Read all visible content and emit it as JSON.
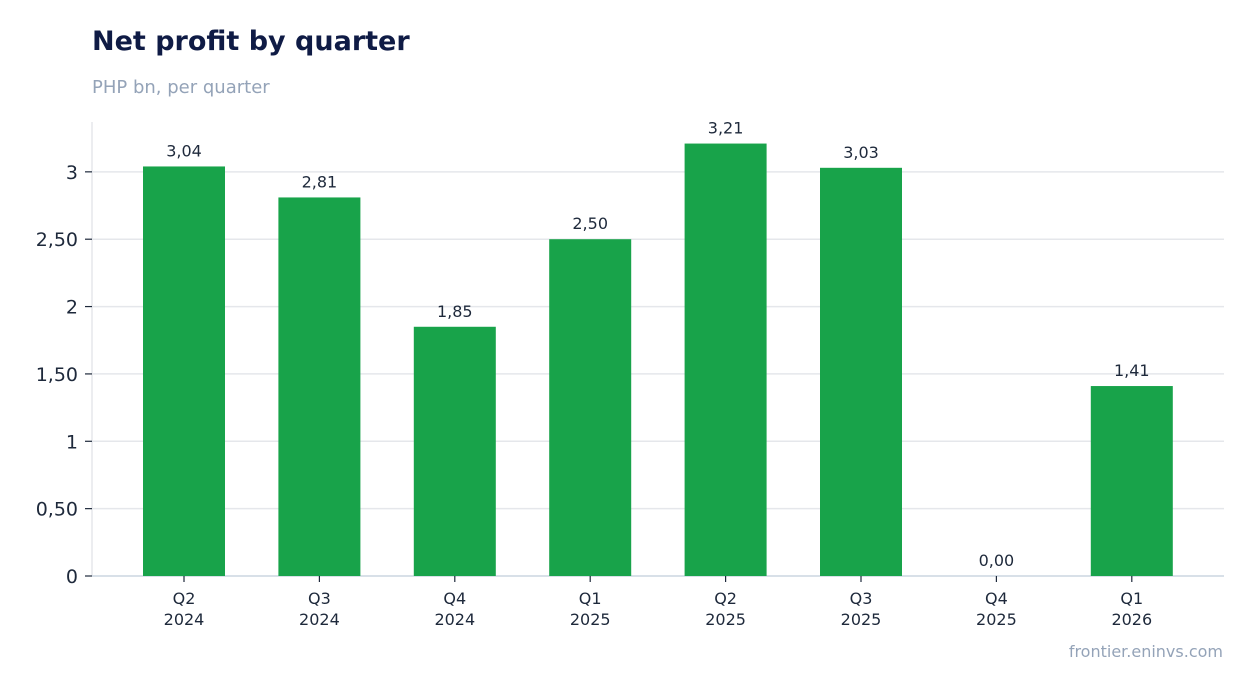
{
  "header": {
    "title": "Net profit by quarter",
    "subtitle": "PHP bn, per quarter"
  },
  "footer": {
    "source": "frontier.eninvs.com"
  },
  "chart_data": {
    "type": "bar",
    "title": "Net profit by quarter",
    "subtitle": "PHP bn, per quarter",
    "categories": [
      [
        "Q2",
        "2024"
      ],
      [
        "Q3",
        "2024"
      ],
      [
        "Q4",
        "2024"
      ],
      [
        "Q1",
        "2025"
      ],
      [
        "Q2",
        "2025"
      ],
      [
        "Q3",
        "2025"
      ],
      [
        "Q4",
        "2025"
      ],
      [
        "Q1",
        "2026"
      ]
    ],
    "values": [
      3.04,
      2.81,
      1.85,
      2.5,
      3.21,
      3.03,
      0.0,
      1.41
    ],
    "value_labels": [
      "3,04",
      "2,81",
      "1,85",
      "2,50",
      "3,21",
      "3,03",
      "0,00",
      "1,41"
    ],
    "yticks": [
      0,
      0.5,
      1,
      1.5,
      2,
      2.5,
      3
    ],
    "ytick_labels": [
      "0",
      "0,50",
      "1",
      "1,50",
      "2",
      "2,50",
      "3"
    ],
    "ylim": [
      0,
      3.37
    ],
    "grid": true,
    "legend": "none",
    "colors": {
      "bar": "#18a34a",
      "grid": "#e5e7eb",
      "axis": "#cbd5e1",
      "title": "#0f1b45",
      "muted": "#94a3b8",
      "text": "#1e293b"
    }
  }
}
